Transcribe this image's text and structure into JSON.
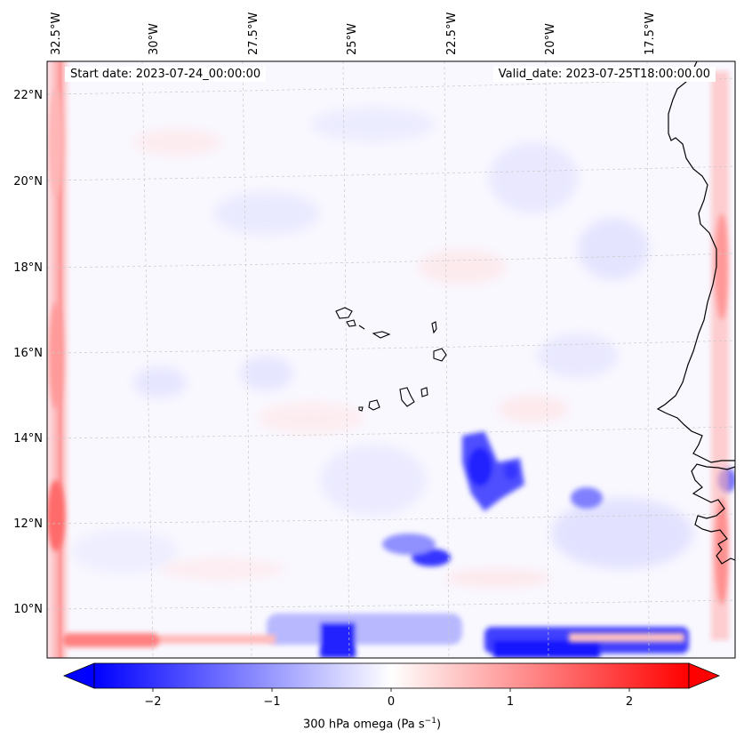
{
  "header": {
    "start_date": "Start date: 2023-07-24_00:00:00",
    "valid_date": "Valid_date: 2023-07-25T18:00:00.00"
  },
  "axes": {
    "lon_labels": [
      "32.5°W",
      "30°W",
      "27.5°W",
      "25°W",
      "22.5°W",
      "20°W",
      "17.5°W"
    ],
    "lat_labels": [
      "22°N",
      "20°N",
      "18°N",
      "16°N",
      "14°N",
      "12°N",
      "10°N"
    ]
  },
  "colorbar": {
    "ticks": [
      "−2",
      "−1",
      "0",
      "1",
      "2"
    ],
    "label": "300 hPa omega (Pa s",
    "label_sup": "−1",
    "label_end": ")",
    "min": -2.7,
    "max": 2.7,
    "neg_color": "#0000ff",
    "pos_color": "#ff0000"
  },
  "map": {
    "variable": "300 hPa omega",
    "colormap": "bwr",
    "features": [
      "coastline",
      "cape-verde-islands",
      "gridlines"
    ]
  }
}
